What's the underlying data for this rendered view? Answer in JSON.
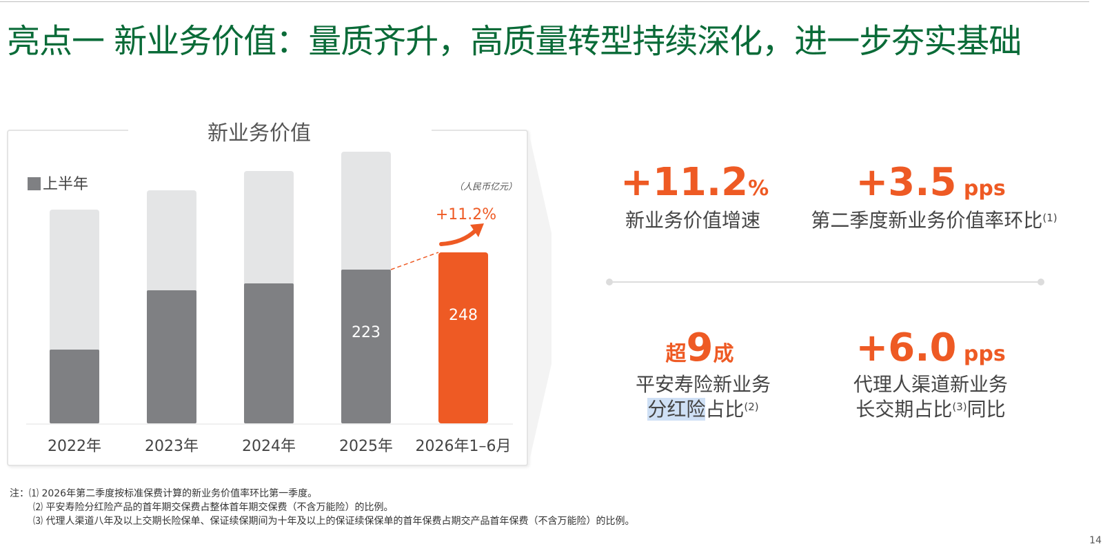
{
  "title": "亮点一 新业务价值：量质齐升，高质量转型持续深化，进一步夯实基础",
  "chart_data": {
    "type": "bar",
    "title": "新业务价值",
    "legend": "上半年",
    "unit": "（人民币亿元）",
    "categories": [
      "2022年",
      "2023年",
      "2024年",
      "2025年",
      "2026年1–6月"
    ],
    "series": [
      {
        "name": "上半年",
        "values": [
          107,
          193,
          203,
          223,
          248
        ],
        "data_labels": [
          "",
          "",
          "",
          "223",
          "248"
        ]
      },
      {
        "name": "",
        "values": [
          310,
          338,
          366,
          394,
          248
        ]
      }
    ],
    "annotation": "+11.2%",
    "ylim": [
      0,
      400
    ],
    "colors": {
      "h1": "#7f8083",
      "full": "#e4e5e6",
      "highlight": "#ee5a24"
    }
  },
  "kpis": [
    {
      "value": "+11.2",
      "unit": "%",
      "label": "新业务价值增速",
      "note": ""
    },
    {
      "value": "+3.5",
      "unit": " pps",
      "label": "第二季度新业务价值率环比",
      "note": "(1)"
    },
    {
      "prefix": "超",
      "value": "9",
      "unit": "成",
      "label1": "平安寿险新业务",
      "label2_hl": "分红险",
      "label2": "占比",
      "note": "(2)"
    },
    {
      "value": "+6.0",
      "unit": " pps",
      "label1": "代理人渠道新业务",
      "label2": "长交期占比",
      "note": "(3)",
      "label2_tail": "同比"
    }
  ],
  "notes": {
    "lead": "注：",
    "items": [
      "⑴ 2026年第二季度按标准保费计算的新业务价值率环比第一季度。",
      "⑵ 平安寿险分红险产品的首年期交保费占整体首年期交保费（不含万能险）的比例。",
      "⑶ 代理人渠道八年及以上交期长险保单、保证续保期间为十年及以上的保证续保保单的首年保费占期交产品首年保费（不含万能险）的比例。"
    ]
  },
  "page_number": "14",
  "colors": {
    "title_green": "#0a6b38",
    "accent": "#ee5a24"
  }
}
